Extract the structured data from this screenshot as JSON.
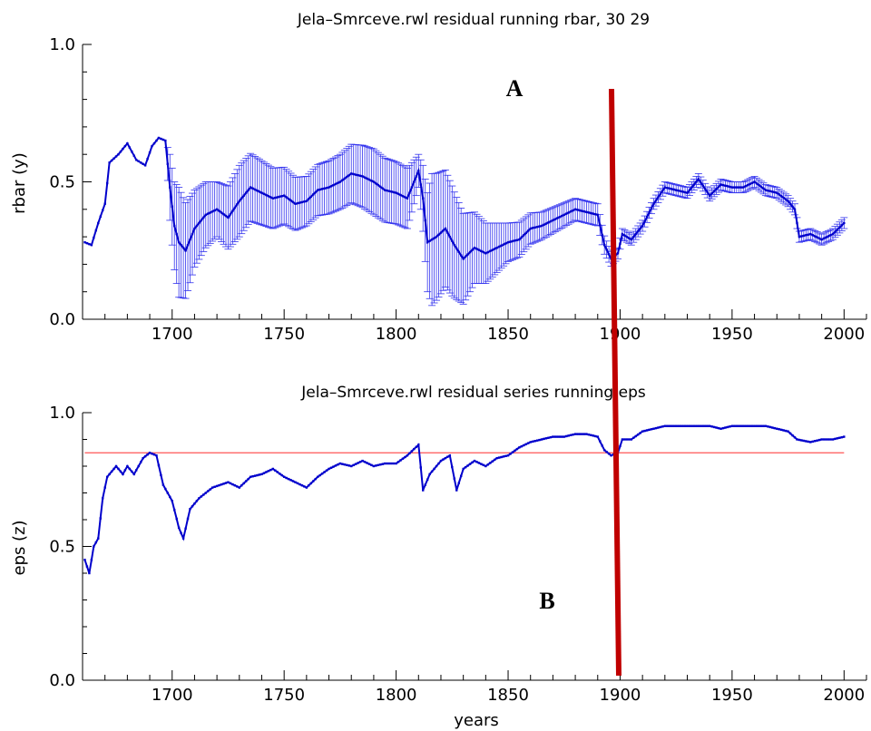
{
  "chart_data": [
    {
      "type": "line",
      "title": "Jela–Smrceve.rwl residual running rbar,   30  29",
      "xlabel": "",
      "ylabel": "rbar (y)",
      "xlim": [
        1660,
        2010
      ],
      "ylim": [
        0.0,
        1.0
      ],
      "x_ticks": [
        "1700",
        "1750",
        "1800",
        "1850",
        "1900",
        "1950",
        "2000"
      ],
      "y_ticks": [
        "0.0",
        "0.5",
        "1.0"
      ],
      "series": [
        {
          "color": "#0000cc",
          "points": [
            [
              1661,
              0.28
            ],
            [
              1664,
              0.27
            ],
            [
              1667,
              0.35
            ],
            [
              1670,
              0.42
            ],
            [
              1672,
              0.57
            ],
            [
              1676,
              0.6
            ],
            [
              1680,
              0.64
            ],
            [
              1684,
              0.58
            ],
            [
              1688,
              0.56
            ],
            [
              1691,
              0.63
            ],
            [
              1694,
              0.66
            ],
            [
              1697,
              0.65
            ],
            [
              1699,
              0.48
            ],
            [
              1701,
              0.34
            ],
            [
              1703,
              0.28
            ],
            [
              1706,
              0.25
            ],
            [
              1710,
              0.33
            ],
            [
              1715,
              0.38
            ],
            [
              1720,
              0.4
            ],
            [
              1725,
              0.37
            ],
            [
              1730,
              0.43
            ],
            [
              1735,
              0.48
            ],
            [
              1740,
              0.46
            ],
            [
              1745,
              0.44
            ],
            [
              1750,
              0.45
            ],
            [
              1755,
              0.42
            ],
            [
              1760,
              0.43
            ],
            [
              1765,
              0.47
            ],
            [
              1770,
              0.48
            ],
            [
              1775,
              0.5
            ],
            [
              1780,
              0.53
            ],
            [
              1785,
              0.52
            ],
            [
              1790,
              0.5
            ],
            [
              1795,
              0.47
            ],
            [
              1800,
              0.46
            ],
            [
              1805,
              0.44
            ],
            [
              1810,
              0.54
            ],
            [
              1812,
              0.44
            ],
            [
              1814,
              0.28
            ],
            [
              1818,
              0.3
            ],
            [
              1822,
              0.33
            ],
            [
              1826,
              0.27
            ],
            [
              1830,
              0.22
            ],
            [
              1835,
              0.26
            ],
            [
              1840,
              0.24
            ],
            [
              1845,
              0.26
            ],
            [
              1850,
              0.28
            ],
            [
              1855,
              0.29
            ],
            [
              1860,
              0.33
            ],
            [
              1865,
              0.34
            ],
            [
              1870,
              0.36
            ],
            [
              1875,
              0.38
            ],
            [
              1880,
              0.4
            ],
            [
              1885,
              0.39
            ],
            [
              1890,
              0.38
            ],
            [
              1893,
              0.27
            ],
            [
              1896,
              0.22
            ],
            [
              1899,
              0.24
            ],
            [
              1901,
              0.31
            ],
            [
              1905,
              0.29
            ],
            [
              1910,
              0.34
            ],
            [
              1915,
              0.42
            ],
            [
              1920,
              0.48
            ],
            [
              1925,
              0.47
            ],
            [
              1930,
              0.46
            ],
            [
              1935,
              0.51
            ],
            [
              1940,
              0.45
            ],
            [
              1945,
              0.49
            ],
            [
              1950,
              0.48
            ],
            [
              1955,
              0.48
            ],
            [
              1960,
              0.5
            ],
            [
              1965,
              0.47
            ],
            [
              1970,
              0.46
            ],
            [
              1975,
              0.43
            ],
            [
              1978,
              0.4
            ],
            [
              1980,
              0.3
            ],
            [
              1985,
              0.31
            ],
            [
              1990,
              0.29
            ],
            [
              1995,
              0.31
            ],
            [
              2000,
              0.35
            ]
          ],
          "error_half_width": [
            [
              1660,
              0.0
            ],
            [
              1697,
              0.0
            ],
            [
              1699,
              0.12
            ],
            [
              1703,
              0.2
            ],
            [
              1710,
              0.14
            ],
            [
              1720,
              0.1
            ],
            [
              1730,
              0.13
            ],
            [
              1745,
              0.11
            ],
            [
              1760,
              0.09
            ],
            [
              1775,
              0.1
            ],
            [
              1790,
              0.12
            ],
            [
              1805,
              0.11
            ],
            [
              1810,
              0.06
            ],
            [
              1812,
              0.12
            ],
            [
              1816,
              0.24
            ],
            [
              1825,
              0.2
            ],
            [
              1835,
              0.13
            ],
            [
              1850,
              0.07
            ],
            [
              1865,
              0.05
            ],
            [
              1880,
              0.04
            ],
            [
              1890,
              0.04
            ],
            [
              1899,
              0.02
            ],
            [
              2000,
              0.02
            ]
          ]
        }
      ]
    },
    {
      "type": "line",
      "title": "Jela–Smrceve.rwl residual series running eps",
      "xlabel": "years",
      "ylabel": "eps (z)",
      "xlim": [
        1660,
        2010
      ],
      "ylim": [
        0.0,
        1.0
      ],
      "x_ticks": [
        "1700",
        "1750",
        "1800",
        "1850",
        "1900",
        "1950",
        "2000"
      ],
      "y_ticks": [
        "0.0",
        "0.5",
        "1.0"
      ],
      "threshold": 0.85,
      "series": [
        {
          "color": "#0000cc",
          "points": [
            [
              1661,
              0.45
            ],
            [
              1663,
              0.4
            ],
            [
              1665,
              0.5
            ],
            [
              1667,
              0.53
            ],
            [
              1669,
              0.68
            ],
            [
              1671,
              0.76
            ],
            [
              1675,
              0.8
            ],
            [
              1678,
              0.77
            ],
            [
              1680,
              0.8
            ],
            [
              1683,
              0.77
            ],
            [
              1687,
              0.83
            ],
            [
              1690,
              0.85
            ],
            [
              1693,
              0.84
            ],
            [
              1696,
              0.73
            ],
            [
              1700,
              0.67
            ],
            [
              1703,
              0.57
            ],
            [
              1705,
              0.53
            ],
            [
              1708,
              0.64
            ],
            [
              1712,
              0.68
            ],
            [
              1718,
              0.72
            ],
            [
              1725,
              0.74
            ],
            [
              1730,
              0.72
            ],
            [
              1735,
              0.76
            ],
            [
              1740,
              0.77
            ],
            [
              1745,
              0.79
            ],
            [
              1750,
              0.76
            ],
            [
              1755,
              0.74
            ],
            [
              1760,
              0.72
            ],
            [
              1765,
              0.76
            ],
            [
              1770,
              0.79
            ],
            [
              1775,
              0.81
            ],
            [
              1780,
              0.8
            ],
            [
              1785,
              0.82
            ],
            [
              1790,
              0.8
            ],
            [
              1795,
              0.81
            ],
            [
              1800,
              0.81
            ],
            [
              1805,
              0.84
            ],
            [
              1810,
              0.88
            ],
            [
              1812,
              0.71
            ],
            [
              1815,
              0.77
            ],
            [
              1820,
              0.82
            ],
            [
              1824,
              0.84
            ],
            [
              1827,
              0.71
            ],
            [
              1830,
              0.79
            ],
            [
              1835,
              0.82
            ],
            [
              1840,
              0.8
            ],
            [
              1845,
              0.83
            ],
            [
              1850,
              0.84
            ],
            [
              1855,
              0.87
            ],
            [
              1860,
              0.89
            ],
            [
              1865,
              0.9
            ],
            [
              1870,
              0.91
            ],
            [
              1875,
              0.91
            ],
            [
              1880,
              0.92
            ],
            [
              1885,
              0.92
            ],
            [
              1890,
              0.91
            ],
            [
              1893,
              0.86
            ],
            [
              1896,
              0.84
            ],
            [
              1899,
              0.85
            ],
            [
              1901,
              0.9
            ],
            [
              1905,
              0.9
            ],
            [
              1910,
              0.93
            ],
            [
              1915,
              0.94
            ],
            [
              1920,
              0.95
            ],
            [
              1925,
              0.95
            ],
            [
              1930,
              0.95
            ],
            [
              1935,
              0.95
            ],
            [
              1940,
              0.95
            ],
            [
              1945,
              0.94
            ],
            [
              1950,
              0.95
            ],
            [
              1955,
              0.95
            ],
            [
              1960,
              0.95
            ],
            [
              1965,
              0.95
            ],
            [
              1970,
              0.94
            ],
            [
              1975,
              0.93
            ],
            [
              1979,
              0.9
            ],
            [
              1985,
              0.89
            ],
            [
              1990,
              0.9
            ],
            [
              1995,
              0.9
            ],
            [
              2000,
              0.91
            ]
          ]
        }
      ]
    }
  ],
  "annotations": [
    "A",
    "B"
  ],
  "colors": {
    "series": "#0000cc",
    "error_bars": "#3333ee",
    "threshold": "#ff5555",
    "marker_line": "#c00000"
  }
}
